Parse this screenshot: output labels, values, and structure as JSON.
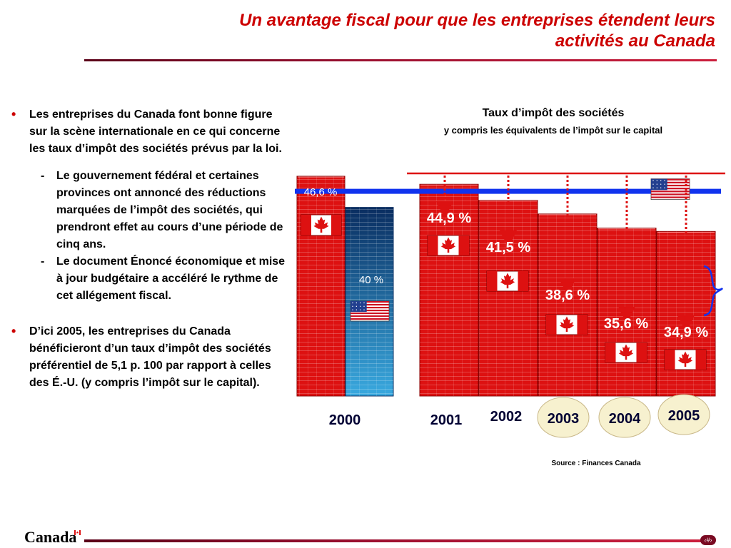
{
  "slide_title": "Un avantage fiscal pour que les entreprises étendent leurs activités au Canada",
  "left_panel": {
    "bullet_1": "Les entreprises du Canada font bonne figure sur la scène internationale en ce qui  concerne les taux d’impôt des sociétés prévus par la loi.",
    "sub_1": "Le gouvernement fédéral et certaines provinces ont annoncé des réductions marquées de l’impôt des sociétés, qui prendront effet au cours d’une période de cinq ans.",
    "sub_2": "Le document Énoncé économique et mise à jour budgétaire a accéléré le rythme de cet allégement fiscal.",
    "bullet_2": "D’ici 2005, les entreprises du Canada bénéficieront d’un taux d’impôt des sociétés préférentiel de  5,1 p. 100 par rapport à celles des  É.-U. (y compris l’impôt sur le capital).",
    "bullet_symbol": "•",
    "dash_symbol": "-"
  },
  "chart_title": "Taux d’impôt des sociétés",
  "chart_subtitle": "y compris les équivalents de l’impôt sur le capital",
  "source": "Source : Finances Canada",
  "footer": {
    "wordmark": "Canada",
    "page_number": "‹#›"
  },
  "colors": {
    "canada_bar": "#dd1111",
    "us_bar_top": "#0a2d60",
    "us_bar_bottom": "#39a9df",
    "us_line": "#1133ee",
    "title_red": "#cc0000",
    "arrow_red": "#dd1111",
    "ellipse_fill": "#f7f1cf"
  },
  "chart_data": {
    "type": "bar",
    "ylim": [
      0,
      50
    ],
    "bars": [
      {
        "year": "2000",
        "country": "Canada",
        "value": 46.6,
        "label": "46,6 %",
        "flag": "canada-flag-icon"
      },
      {
        "year": "2000",
        "country": "É.-U.",
        "value": 40,
        "label": "40 %",
        "flag": "us-flag-icon"
      },
      {
        "year": "2001",
        "country": "Canada",
        "value": 44.9,
        "label": "44,9 %",
        "flag": "canada-flag-icon"
      },
      {
        "year": "2002",
        "country": "Canada",
        "value": 41.5,
        "label": "41,5 %",
        "flag": "canada-flag-icon"
      },
      {
        "year": "2003",
        "country": "Canada",
        "value": 38.6,
        "label": "38,6 %",
        "flag": "canada-flag-icon"
      },
      {
        "year": "2004",
        "country": "Canada",
        "value": 35.6,
        "label": "35,6 %",
        "flag": "canada-flag-icon"
      },
      {
        "year": "2005",
        "country": "Canada",
        "value": 34.9,
        "label": "34,9 %",
        "flag": "canada-flag-icon"
      }
    ],
    "years": [
      {
        "label": "2000",
        "highlighted": false
      },
      {
        "label": "2001",
        "highlighted": false
      },
      {
        "label": "2002",
        "highlighted": false
      },
      {
        "label": "2003",
        "highlighted": true
      },
      {
        "label": "2004",
        "highlighted": true
      },
      {
        "label": "2005",
        "highlighted": true
      }
    ],
    "us_reference_value": 40,
    "reference_line_value": 46.6,
    "arrows_on_years": [
      "2001",
      "2002",
      "2003",
      "2004",
      "2005"
    ],
    "brace_annotation": "gap between US rate and 2005 Canada rate"
  }
}
